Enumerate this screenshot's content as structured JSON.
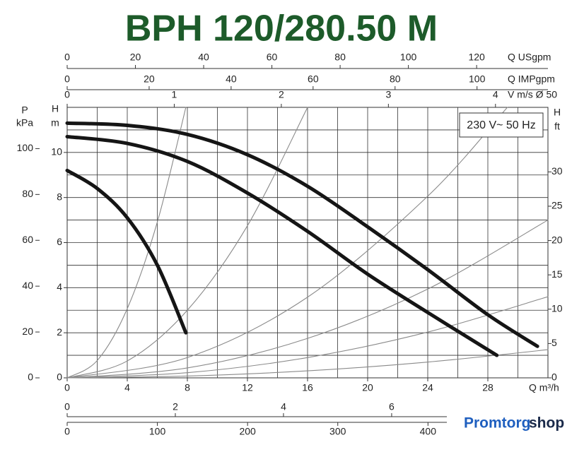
{
  "chart_data": {
    "type": "line",
    "title": "BPH 120/280.50 M",
    "annotation": "230 V~ 50 Hz",
    "xlabel": "Q m³/h",
    "ylabel": {
      "symbol": "H",
      "unit": "m"
    },
    "xlim": [
      0,
      32
    ],
    "ylim": [
      0,
      12
    ],
    "xticks": [
      0,
      4,
      8,
      12,
      16,
      20,
      24,
      28
    ],
    "yticks": [
      0,
      2,
      4,
      6,
      8,
      10
    ],
    "xgrid": [
      0,
      2,
      4,
      6,
      8,
      10,
      12,
      14,
      16,
      18,
      20,
      22,
      24,
      26,
      28,
      30,
      32
    ],
    "ygrid": [
      0,
      1,
      2,
      3,
      4,
      5,
      6,
      7,
      8,
      9,
      10,
      11,
      12
    ],
    "grid": true,
    "series": [
      {
        "color": "#151515",
        "x": [
          0,
          4,
          8,
          12,
          16,
          20,
          24,
          28,
          31.3
        ],
        "values": [
          11.3,
          11.2,
          10.8,
          9.9,
          8.5,
          6.7,
          4.8,
          2.8,
          1.4
        ]
      },
      {
        "color": "#151515",
        "x": [
          0,
          4,
          8,
          12,
          16,
          20,
          24,
          28.6
        ],
        "values": [
          10.7,
          10.4,
          9.6,
          8.2,
          6.5,
          4.6,
          2.9,
          1.0
        ]
      },
      {
        "color": "#151515",
        "x": [
          0,
          2,
          4,
          6,
          7.9
        ],
        "values": [
          9.2,
          8.4,
          7.1,
          5.0,
          2.0
        ]
      }
    ],
    "system_curves": {
      "color": "#8a8a8a",
      "lines": [
        {
          "x": [
            0,
            2,
            4,
            6,
            7.9
          ],
          "values": [
            0,
            0.77,
            3.07,
            6.91,
            12
          ]
        },
        {
          "x": [
            0,
            4,
            8,
            12,
            16
          ],
          "values": [
            0,
            0.75,
            3,
            6.75,
            12
          ]
        },
        {
          "x": [
            0,
            8,
            16,
            24,
            29.3
          ],
          "values": [
            0,
            0.9,
            3.58,
            8.06,
            12
          ]
        },
        {
          "x": [
            0,
            8,
            16,
            24,
            32
          ],
          "values": [
            0,
            0.44,
            1.75,
            3.94,
            7
          ]
        },
        {
          "x": [
            0,
            8,
            16,
            24,
            32
          ],
          "values": [
            0,
            0.23,
            0.9,
            2.03,
            3.6
          ]
        },
        {
          "x": [
            0,
            8,
            16,
            24,
            32
          ],
          "values": [
            0,
            0.08,
            0.31,
            0.7,
            1.25
          ]
        }
      ]
    },
    "left_axis": {
      "symbol": "P",
      "unit": "kPa",
      "lim": [
        0,
        118
      ],
      "ticks": [
        0,
        20,
        40,
        60,
        80,
        100
      ]
    },
    "right_axis": {
      "symbol": "H",
      "unit": "ft",
      "lim": [
        0,
        39.4
      ],
      "ticks": [
        0,
        5,
        10,
        15,
        20,
        25,
        30
      ]
    },
    "top_axes": [
      {
        "label": "Q USgpm",
        "lim": [
          0,
          140.9
        ],
        "ticks": [
          0,
          20,
          40,
          60,
          80,
          100,
          120
        ]
      },
      {
        "label": "Q IMPgpm",
        "lim": [
          0,
          117.3
        ],
        "ticks": [
          0,
          20,
          40,
          60,
          80,
          100
        ]
      },
      {
        "label": "V m/s Ø 50",
        "lim": [
          0,
          4.49
        ],
        "ticks": [
          0,
          1,
          2,
          3,
          4
        ]
      }
    ],
    "bottom_axes": [
      {
        "lim": [
          0,
          8.89
        ],
        "ticks": [
          0,
          2,
          4,
          6
        ]
      },
      {
        "lim": [
          0,
          533
        ],
        "ticks": [
          0,
          100,
          200,
          300,
          400
        ]
      }
    ]
  },
  "logo": {
    "brand": "Promtorg",
    "suffix": "shop"
  }
}
